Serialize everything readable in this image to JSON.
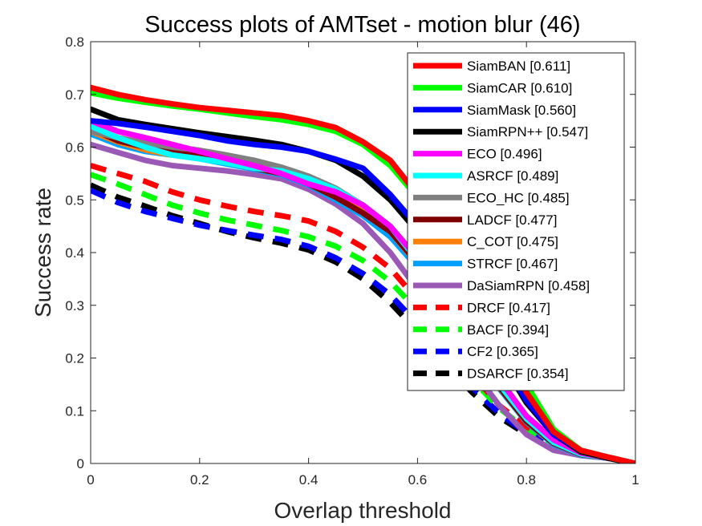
{
  "chart_data": {
    "type": "line",
    "title": "Success plots of AMTset - motion blur (46)",
    "xlabel": "Overlap threshold",
    "ylabel": "Success rate",
    "xlim": [
      0,
      1
    ],
    "ylim": [
      0,
      0.8
    ],
    "xticks": [
      "0",
      "0.2",
      "0.4",
      "0.6",
      "0.8",
      "1"
    ],
    "yticks": [
      "0",
      "0.1",
      "0.2",
      "0.3",
      "0.4",
      "0.5",
      "0.6",
      "0.7",
      "0.8"
    ],
    "grid": false,
    "legend_position": "top-right",
    "x": [
      0,
      0.05,
      0.1,
      0.15,
      0.2,
      0.25,
      0.3,
      0.35,
      0.4,
      0.45,
      0.5,
      0.55,
      0.6,
      0.65,
      0.7,
      0.75,
      0.8,
      0.85,
      0.9,
      0.95,
      1.0
    ],
    "series": [
      {
        "name": "SiamBAN [0.611]",
        "color": "#ff0000",
        "dash": false,
        "values": [
          0.713,
          0.7,
          0.69,
          0.682,
          0.675,
          0.67,
          0.665,
          0.66,
          0.65,
          0.637,
          0.61,
          0.575,
          0.51,
          0.44,
          0.35,
          0.24,
          0.135,
          0.06,
          0.025,
          0.012,
          0.0
        ]
      },
      {
        "name": "SiamCAR [0.610]",
        "color": "#00ff00",
        "dash": false,
        "values": [
          0.703,
          0.693,
          0.685,
          0.678,
          0.672,
          0.665,
          0.658,
          0.652,
          0.643,
          0.63,
          0.605,
          0.565,
          0.505,
          0.44,
          0.36,
          0.26,
          0.15,
          0.065,
          0.025,
          0.012,
          0.0
        ]
      },
      {
        "name": "SiamMask [0.560]",
        "color": "#0000ff",
        "dash": false,
        "values": [
          0.65,
          0.645,
          0.638,
          0.63,
          0.622,
          0.612,
          0.605,
          0.6,
          0.592,
          0.577,
          0.56,
          0.51,
          0.45,
          0.38,
          0.3,
          0.205,
          0.12,
          0.055,
          0.025,
          0.012,
          0.0
        ]
      },
      {
        "name": "SiamRPN++ [0.547]",
        "color": "#000000",
        "dash": false,
        "values": [
          0.672,
          0.652,
          0.643,
          0.635,
          0.627,
          0.62,
          0.613,
          0.605,
          0.592,
          0.575,
          0.545,
          0.5,
          0.44,
          0.37,
          0.29,
          0.2,
          0.115,
          0.055,
          0.022,
          0.01,
          0.0
        ]
      },
      {
        "name": "ECO [0.496]",
        "color": "#ff00ff",
        "dash": false,
        "values": [
          0.65,
          0.63,
          0.618,
          0.605,
          0.592,
          0.578,
          0.565,
          0.55,
          0.53,
          0.515,
          0.49,
          0.45,
          0.39,
          0.32,
          0.24,
          0.16,
          0.09,
          0.045,
          0.02,
          0.01,
          0.0
        ]
      },
      {
        "name": "ASRCF [0.489]",
        "color": "#00ffff",
        "dash": false,
        "values": [
          0.64,
          0.618,
          0.6,
          0.585,
          0.578,
          0.57,
          0.56,
          0.555,
          0.54,
          0.52,
          0.49,
          0.45,
          0.385,
          0.31,
          0.23,
          0.15,
          0.085,
          0.04,
          0.018,
          0.01,
          0.0
        ]
      },
      {
        "name": "ECO_HC [0.485]",
        "color": "#808080",
        "dash": false,
        "values": [
          0.63,
          0.618,
          0.608,
          0.6,
          0.594,
          0.585,
          0.575,
          0.562,
          0.545,
          0.522,
          0.49,
          0.45,
          0.385,
          0.31,
          0.23,
          0.15,
          0.085,
          0.04,
          0.018,
          0.01,
          0.0
        ]
      },
      {
        "name": "LADCF [0.477]",
        "color": "#800000",
        "dash": false,
        "values": [
          0.635,
          0.612,
          0.6,
          0.592,
          0.585,
          0.572,
          0.56,
          0.55,
          0.53,
          0.505,
          0.475,
          0.44,
          0.38,
          0.305,
          0.225,
          0.145,
          0.08,
          0.038,
          0.017,
          0.01,
          0.0
        ]
      },
      {
        "name": "C_COT [0.475]",
        "color": "#ff8000",
        "dash": false,
        "values": [
          0.63,
          0.61,
          0.595,
          0.585,
          0.58,
          0.57,
          0.56,
          0.552,
          0.532,
          0.51,
          0.478,
          0.44,
          0.378,
          0.302,
          0.222,
          0.145,
          0.08,
          0.038,
          0.017,
          0.01,
          0.0
        ]
      },
      {
        "name": "STRCF [0.467]",
        "color": "#00a0ff",
        "dash": false,
        "values": [
          0.625,
          0.605,
          0.592,
          0.585,
          0.578,
          0.568,
          0.558,
          0.548,
          0.528,
          0.5,
          0.47,
          0.43,
          0.372,
          0.298,
          0.218,
          0.142,
          0.078,
          0.036,
          0.016,
          0.01,
          0.0
        ]
      },
      {
        "name": "DaSiamRPN [0.458]",
        "color": "#9b59b6",
        "dash": false,
        "values": [
          0.605,
          0.59,
          0.575,
          0.565,
          0.56,
          0.555,
          0.548,
          0.54,
          0.52,
          0.492,
          0.455,
          0.4,
          0.33,
          0.26,
          0.18,
          0.11,
          0.055,
          0.025,
          0.015,
          0.01,
          0.0
        ]
      },
      {
        "name": "DRCF [0.417]",
        "color": "#ff0000",
        "dash": true,
        "values": [
          0.565,
          0.55,
          0.535,
          0.515,
          0.5,
          0.488,
          0.478,
          0.47,
          0.46,
          0.44,
          0.41,
          0.37,
          0.31,
          0.24,
          0.17,
          0.11,
          0.07,
          0.04,
          0.02,
          0.01,
          0.0
        ]
      },
      {
        "name": "BACF [0.394]",
        "color": "#00ff00",
        "dash": true,
        "values": [
          0.548,
          0.53,
          0.51,
          0.49,
          0.475,
          0.462,
          0.452,
          0.442,
          0.43,
          0.412,
          0.385,
          0.345,
          0.29,
          0.225,
          0.16,
          0.105,
          0.065,
          0.038,
          0.02,
          0.01,
          0.0
        ]
      },
      {
        "name": "CF2 [0.365]",
        "color": "#0000ff",
        "dash": true,
        "values": [
          0.518,
          0.495,
          0.478,
          0.465,
          0.452,
          0.442,
          0.433,
          0.425,
          0.412,
          0.39,
          0.36,
          0.32,
          0.265,
          0.205,
          0.145,
          0.095,
          0.058,
          0.035,
          0.018,
          0.01,
          0.0
        ]
      },
      {
        "name": "DSARCF [0.354]",
        "color": "#000000",
        "dash": true,
        "values": [
          0.528,
          0.505,
          0.488,
          0.47,
          0.455,
          0.44,
          0.428,
          0.418,
          0.405,
          0.382,
          0.35,
          0.305,
          0.25,
          0.19,
          0.135,
          0.088,
          0.055,
          0.033,
          0.017,
          0.01,
          0.0
        ]
      }
    ]
  }
}
